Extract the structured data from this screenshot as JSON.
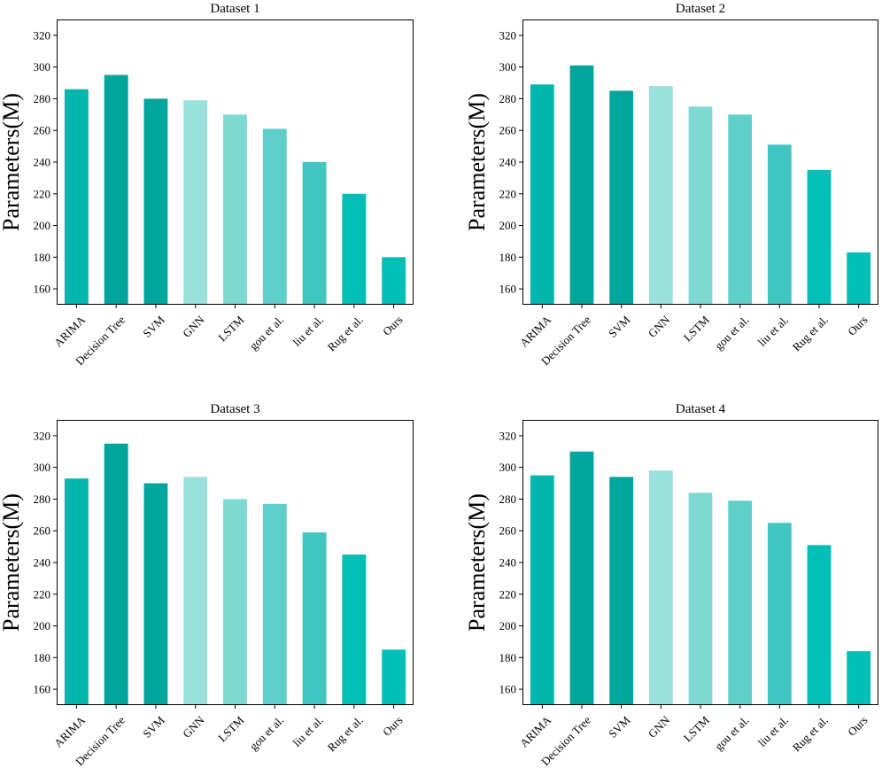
{
  "chart_data": [
    {
      "type": "bar",
      "title": "Dataset 1",
      "xlabel": "",
      "ylabel": "Parameters(M)",
      "ylim": [
        150,
        330
      ],
      "yticks": [
        160,
        180,
        200,
        220,
        240,
        260,
        280,
        300,
        320
      ],
      "categories": [
        "ARIMA",
        "Decision Tree",
        "SVM",
        "GNN",
        "LSTM",
        "gou et al.",
        "liu et al.",
        "Rug et al.",
        "Ours"
      ],
      "values": [
        286,
        295,
        280,
        279,
        270,
        261,
        240,
        220,
        180
      ]
    },
    {
      "type": "bar",
      "title": "Dataset 2",
      "xlabel": "",
      "ylabel": "Parameters(M)",
      "ylim": [
        150,
        330
      ],
      "yticks": [
        160,
        180,
        200,
        220,
        240,
        260,
        280,
        300,
        320
      ],
      "categories": [
        "ARIMA",
        "Decision Tree",
        "SVM",
        "GNN",
        "LSTM",
        "gou et al.",
        "liu et al.",
        "Rug et al.",
        "Ours"
      ],
      "values": [
        289,
        301,
        285,
        288,
        275,
        270,
        251,
        235,
        183
      ]
    },
    {
      "type": "bar",
      "title": "Dataset 3",
      "xlabel": "",
      "ylabel": "Parameters(M)",
      "ylim": [
        150,
        330
      ],
      "yticks": [
        160,
        180,
        200,
        220,
        240,
        260,
        280,
        300,
        320
      ],
      "categories": [
        "ARIMA",
        "Decision Tree",
        "SVM",
        "GNN",
        "LSTM",
        "gou et al.",
        "liu et al.",
        "Rug et al.",
        "Ours"
      ],
      "values": [
        293,
        315,
        290,
        294,
        280,
        277,
        259,
        245,
        185
      ]
    },
    {
      "type": "bar",
      "title": "Dataset 4",
      "xlabel": "",
      "ylabel": "Parameters(M)",
      "ylim": [
        150,
        330
      ],
      "yticks": [
        160,
        180,
        200,
        220,
        240,
        260,
        280,
        300,
        320
      ],
      "categories": [
        "ARIMA",
        "Decision Tree",
        "SVM",
        "GNN",
        "LSTM",
        "gou et al.",
        "liu et al.",
        "Rug et al.",
        "Ours"
      ],
      "values": [
        295,
        310,
        294,
        298,
        284,
        279,
        265,
        251,
        184
      ]
    }
  ],
  "colors": {
    "bars": [
      "#00b6ad",
      "#00a69c",
      "#00a69c",
      "#9ae0dc",
      "#7ed9d3",
      "#5fcfc9",
      "#40c6c0",
      "#00bfb6",
      "#00bfb6"
    ]
  }
}
